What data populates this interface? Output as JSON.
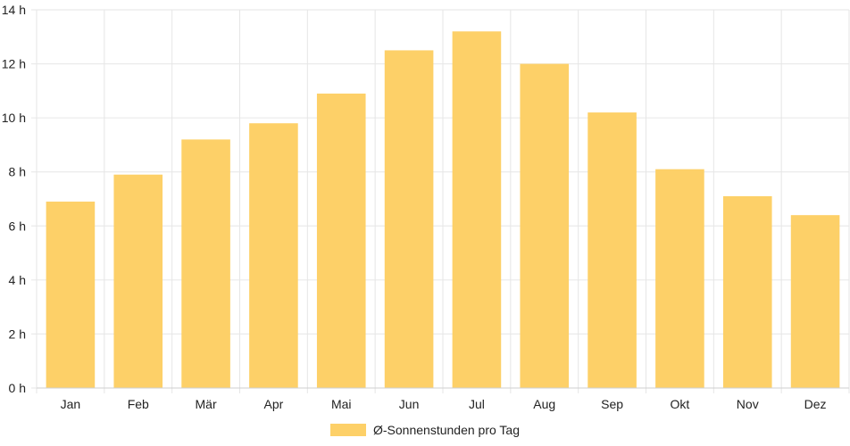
{
  "chart_data": {
    "type": "bar",
    "categories": [
      "Jan",
      "Feb",
      "Mär",
      "Apr",
      "Mai",
      "Jun",
      "Jul",
      "Aug",
      "Sep",
      "Okt",
      "Nov",
      "Dez"
    ],
    "series": [
      {
        "name": "Ø-Sonnenstunden pro Tag",
        "values": [
          6.9,
          7.9,
          9.2,
          9.8,
          10.9,
          12.5,
          13.2,
          12.0,
          10.2,
          8.1,
          7.1,
          6.4
        ]
      }
    ],
    "ylim": [
      0,
      14
    ],
    "yticks": [
      0,
      2,
      4,
      6,
      8,
      10,
      12,
      14
    ],
    "ytick_suffix": " h",
    "grid": true,
    "legend_position": "bottom",
    "bar_color": "#fdd068",
    "grid_color": "#e6e6e6"
  }
}
